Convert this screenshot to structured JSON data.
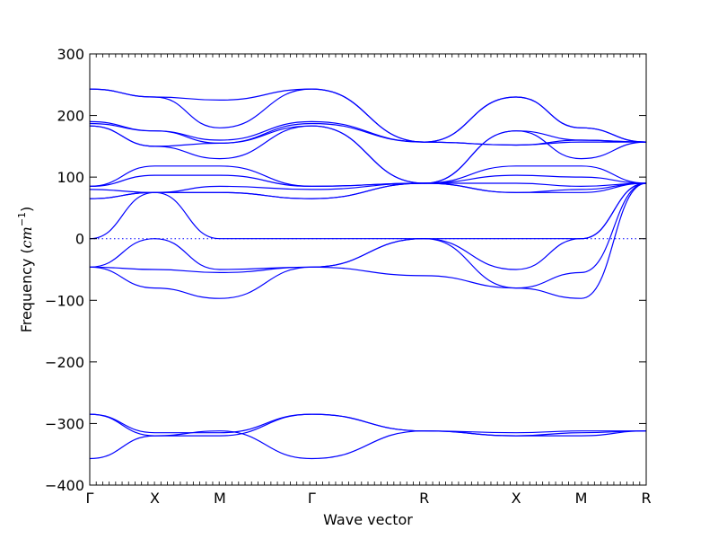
{
  "chart_data": {
    "type": "line",
    "title": "",
    "xlabel": "Wave vector",
    "ylabel_text": "Frequency (",
    "ylabel_unit_base": "cm",
    "ylabel_unit_exp": "−1",
    "ylabel_close": ")",
    "ylim": [
      -400,
      300
    ],
    "yticks": [
      300,
      200,
      100,
      0,
      -100,
      -200,
      -300,
      -400
    ],
    "ytick_labels": [
      "300",
      "200",
      "100",
      "0",
      "−100",
      "−200",
      "−300",
      "−400"
    ],
    "grid": false,
    "legend": "none",
    "line_color": "#0000ff",
    "zero_line": {
      "y": 0,
      "style": "dotted"
    },
    "x_path": {
      "labels": [
        "Γ",
        "X",
        "M",
        "Γ",
        "R",
        "X",
        "M",
        "R"
      ],
      "positions": [
        0,
        0.5,
        1.0,
        1.707,
        2.573,
        3.28,
        3.78,
        4.28
      ],
      "xlim": [
        0,
        4.28
      ]
    },
    "series": [
      {
        "points": [
          [
            0,
            243
          ],
          [
            0.5,
            230
          ],
          [
            1.0,
            225
          ],
          [
            1.707,
            243
          ],
          [
            2.573,
            157
          ],
          [
            3.28,
            230
          ],
          [
            3.78,
            180
          ],
          [
            4.28,
            157
          ]
        ]
      },
      {
        "points": [
          [
            0,
            243
          ],
          [
            0.5,
            230
          ],
          [
            1.0,
            180
          ],
          [
            1.707,
            243
          ],
          [
            2.573,
            157
          ],
          [
            3.28,
            230
          ],
          [
            3.78,
            180
          ],
          [
            4.28,
            157
          ]
        ]
      },
      {
        "points": [
          [
            0,
            190
          ],
          [
            0.5,
            175
          ],
          [
            1.0,
            160
          ],
          [
            1.707,
            190
          ],
          [
            2.573,
            157
          ],
          [
            3.28,
            152
          ],
          [
            3.78,
            157
          ],
          [
            4.28,
            157
          ]
        ]
      },
      {
        "points": [
          [
            0,
            187
          ],
          [
            0.5,
            175
          ],
          [
            1.0,
            155
          ],
          [
            1.707,
            187
          ],
          [
            2.573,
            157
          ],
          [
            3.28,
            152
          ],
          [
            3.78,
            160
          ],
          [
            4.28,
            157
          ]
        ]
      },
      {
        "points": [
          [
            0,
            183
          ],
          [
            0.5,
            150
          ],
          [
            1.0,
            155
          ],
          [
            1.707,
            183
          ],
          [
            2.573,
            90
          ],
          [
            3.28,
            175
          ],
          [
            3.78,
            160
          ],
          [
            4.28,
            157
          ]
        ]
      },
      {
        "points": [
          [
            0,
            183
          ],
          [
            0.5,
            150
          ],
          [
            1.0,
            130
          ],
          [
            1.707,
            183
          ],
          [
            2.573,
            90
          ],
          [
            3.28,
            175
          ],
          [
            3.78,
            130
          ],
          [
            4.28,
            157
          ]
        ]
      },
      {
        "points": [
          [
            0,
            85
          ],
          [
            0.5,
            118
          ],
          [
            1.0,
            118
          ],
          [
            1.707,
            85
          ],
          [
            2.573,
            90
          ],
          [
            3.28,
            118
          ],
          [
            3.78,
            118
          ],
          [
            4.28,
            90
          ]
        ]
      },
      {
        "points": [
          [
            0,
            85
          ],
          [
            0.5,
            103
          ],
          [
            1.0,
            103
          ],
          [
            1.707,
            85
          ],
          [
            2.573,
            90
          ],
          [
            3.28,
            103
          ],
          [
            3.78,
            100
          ],
          [
            4.28,
            90
          ]
        ]
      },
      {
        "points": [
          [
            0,
            80
          ],
          [
            0.5,
            75
          ],
          [
            1.0,
            85
          ],
          [
            1.707,
            80
          ],
          [
            2.573,
            90
          ],
          [
            3.28,
            75
          ],
          [
            3.78,
            80
          ],
          [
            4.28,
            90
          ]
        ]
      },
      {
        "points": [
          [
            0,
            65
          ],
          [
            0.5,
            75
          ],
          [
            1.0,
            75
          ],
          [
            1.707,
            65
          ],
          [
            2.573,
            90
          ],
          [
            3.28,
            90
          ],
          [
            3.78,
            85
          ],
          [
            4.28,
            90
          ]
        ]
      },
      {
        "points": [
          [
            0,
            65
          ],
          [
            0.5,
            75
          ],
          [
            1.0,
            75
          ],
          [
            1.707,
            65
          ],
          [
            2.573,
            90
          ],
          [
            3.28,
            75
          ],
          [
            3.78,
            75
          ],
          [
            4.28,
            90
          ]
        ]
      },
      {
        "points": [
          [
            0,
            0
          ],
          [
            0.5,
            75
          ],
          [
            1.0,
            0
          ],
          [
            1.707,
            0
          ],
          [
            2.573,
            0
          ],
          [
            3.28,
            -50
          ],
          [
            3.78,
            0
          ],
          [
            4.28,
            90
          ]
        ]
      },
      {
        "points": [
          [
            0,
            -46
          ],
          [
            0.5,
            0
          ],
          [
            1.0,
            -50
          ],
          [
            1.707,
            -46
          ],
          [
            2.573,
            0
          ],
          [
            3.28,
            -80
          ],
          [
            3.78,
            -55
          ],
          [
            4.28,
            90
          ]
        ]
      },
      {
        "points": [
          [
            0,
            -46
          ],
          [
            0.5,
            -50
          ],
          [
            1.0,
            -55
          ],
          [
            1.707,
            -46
          ],
          [
            2.573,
            -60
          ],
          [
            3.28,
            -80
          ],
          [
            3.78,
            -97
          ],
          [
            4.28,
            90
          ]
        ]
      },
      {
        "points": [
          [
            0,
            -46
          ],
          [
            0.5,
            -80
          ],
          [
            1.0,
            -97
          ],
          [
            1.707,
            -46
          ],
          [
            2.573,
            0
          ],
          [
            3.28,
            0
          ],
          [
            3.78,
            0
          ],
          [
            4.28,
            90
          ]
        ]
      },
      {
        "points": [
          [
            0,
            -285
          ],
          [
            0.5,
            -315
          ],
          [
            1.0,
            -315
          ],
          [
            1.707,
            -285
          ],
          [
            2.573,
            -312
          ],
          [
            3.28,
            -315
          ],
          [
            3.78,
            -312
          ],
          [
            4.28,
            -312
          ]
        ]
      },
      {
        "points": [
          [
            0,
            -285
          ],
          [
            0.5,
            -320
          ],
          [
            1.0,
            -320
          ],
          [
            1.707,
            -285
          ],
          [
            2.573,
            -312
          ],
          [
            3.28,
            -320
          ],
          [
            3.78,
            -320
          ],
          [
            4.28,
            -312
          ]
        ]
      },
      {
        "points": [
          [
            0,
            -357
          ],
          [
            0.5,
            -320
          ],
          [
            1.0,
            -312
          ],
          [
            1.707,
            -357
          ],
          [
            2.573,
            -312
          ],
          [
            3.28,
            -320
          ],
          [
            3.78,
            -315
          ],
          [
            4.28,
            -312
          ]
        ]
      }
    ]
  }
}
